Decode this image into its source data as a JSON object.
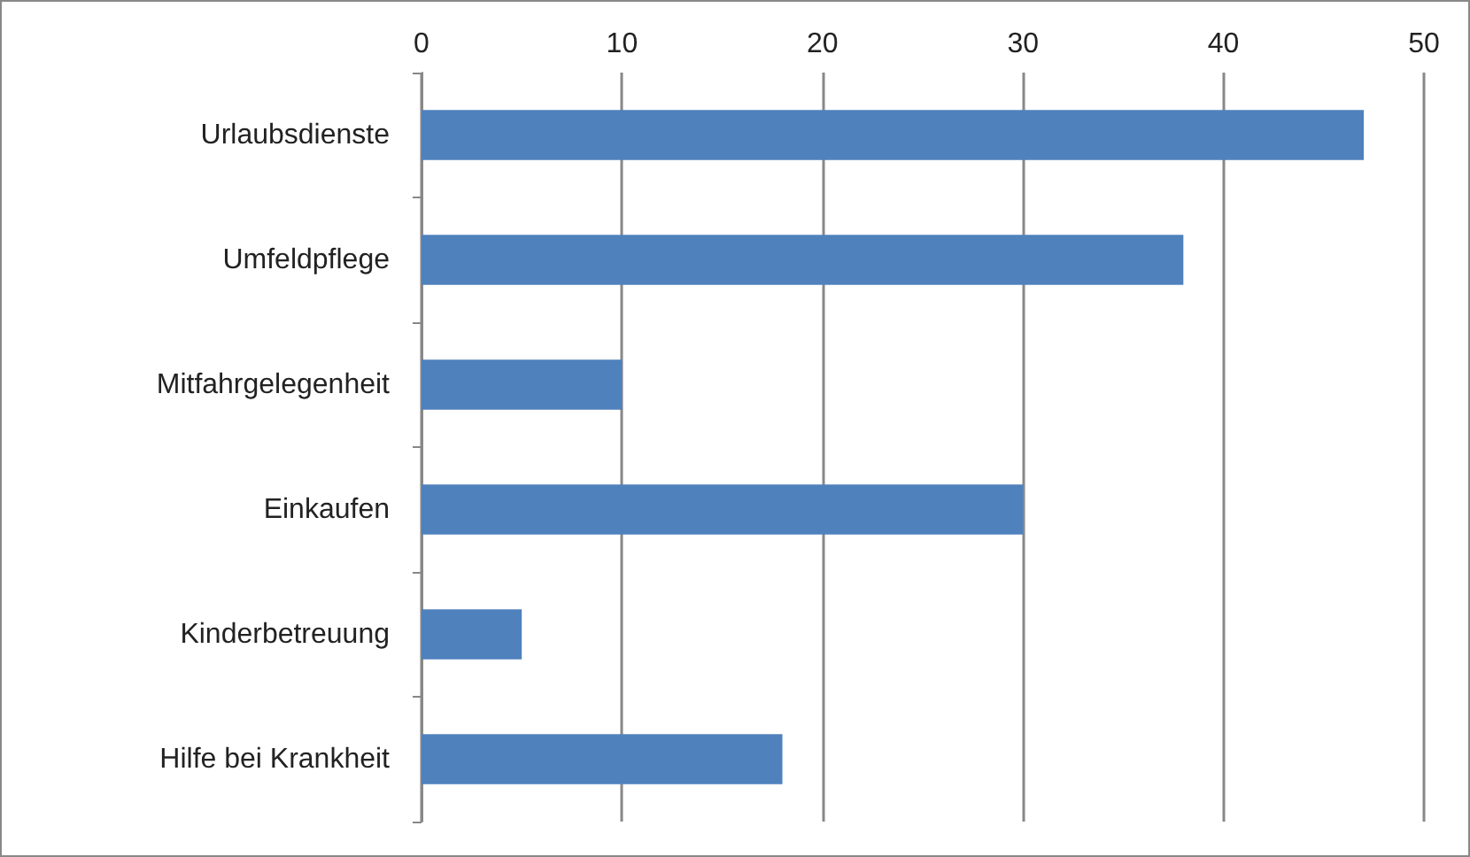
{
  "chart_data": {
    "type": "bar",
    "orientation": "horizontal",
    "categories": [
      "Urlaubsdienste",
      "Umfeldpflege",
      "Mitfahrgelegenheit",
      "Einkaufen",
      "Kinderbetreuung",
      "Hilfe bei Krankheit"
    ],
    "values": [
      47,
      38,
      10,
      30,
      5,
      18
    ],
    "color": "#4f81bd",
    "xlim": [
      0,
      50
    ],
    "xticks": [
      0,
      10,
      20,
      30,
      40,
      50
    ],
    "grid": "x"
  }
}
